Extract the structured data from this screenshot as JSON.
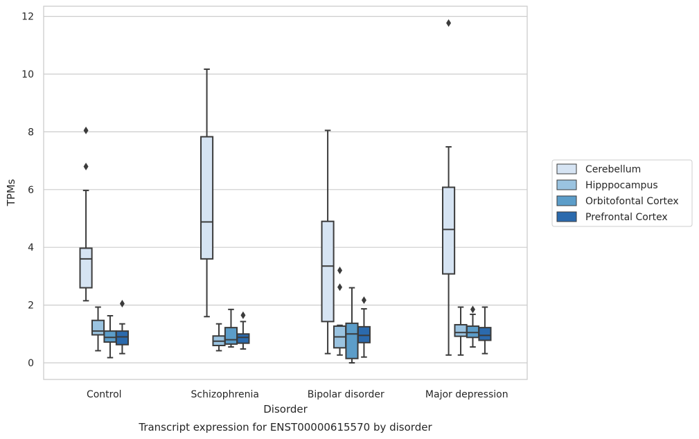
{
  "caption": "Transcript expression for ENST00000615570 by disorder",
  "chart_data": {
    "type": "box",
    "xlabel": "Disorder",
    "ylabel": "TPMs",
    "ylim": [
      -0.55,
      12.35
    ],
    "yticks": [
      0,
      2,
      4,
      6,
      8,
      10,
      12
    ],
    "grid": "horizontal",
    "legend_position": "right",
    "categories": [
      "Control",
      "Schizophrenia",
      "Bipolar disorder",
      "Major depression"
    ],
    "series": [
      {
        "name": "Cerebellum",
        "color": "#d6e4f3",
        "boxes": [
          {
            "whisker_low": 2.15,
            "q1": 2.6,
            "median": 3.6,
            "q3": 3.97,
            "whisker_high": 5.97,
            "outliers": [
              6.8,
              8.05
            ]
          },
          {
            "whisker_low": 1.6,
            "q1": 3.6,
            "median": 4.88,
            "q3": 7.83,
            "whisker_high": 10.17,
            "outliers": []
          },
          {
            "whisker_low": 0.32,
            "q1": 1.43,
            "median": 3.35,
            "q3": 4.9,
            "whisker_high": 8.05,
            "outliers": []
          },
          {
            "whisker_low": 0.27,
            "q1": 3.08,
            "median": 4.62,
            "q3": 6.08,
            "whisker_high": 7.48,
            "outliers": [
              11.77
            ]
          }
        ]
      },
      {
        "name": "Hipppocampus",
        "color": "#9ac3e0",
        "boxes": [
          {
            "whisker_low": 0.42,
            "q1": 0.97,
            "median": 1.1,
            "q3": 1.47,
            "whisker_high": 1.93,
            "outliers": []
          },
          {
            "whisker_low": 0.42,
            "q1": 0.6,
            "median": 0.75,
            "q3": 0.93,
            "whisker_high": 1.35,
            "outliers": []
          },
          {
            "whisker_low": 0.27,
            "q1": 0.52,
            "median": 0.9,
            "q3": 1.27,
            "whisker_high": 1.3,
            "outliers": [
              2.62,
              3.2
            ]
          },
          {
            "whisker_low": 0.27,
            "q1": 0.92,
            "median": 1.05,
            "q3": 1.32,
            "whisker_high": 1.93,
            "outliers": []
          }
        ]
      },
      {
        "name": "Orbitofontal Cortex",
        "color": "#5c9dc9",
        "boxes": [
          {
            "whisker_low": 0.18,
            "q1": 0.72,
            "median": 0.88,
            "q3": 1.1,
            "whisker_high": 1.63,
            "outliers": []
          },
          {
            "whisker_low": 0.55,
            "q1": 0.65,
            "median": 0.8,
            "q3": 1.22,
            "whisker_high": 1.85,
            "outliers": []
          },
          {
            "whisker_low": 0.0,
            "q1": 0.15,
            "median": 1.0,
            "q3": 1.37,
            "whisker_high": 2.6,
            "outliers": []
          },
          {
            "whisker_low": 0.55,
            "q1": 0.88,
            "median": 1.05,
            "q3": 1.27,
            "whisker_high": 1.68,
            "outliers": [
              1.85
            ]
          }
        ]
      },
      {
        "name": "Prefrontal Cortex",
        "color": "#2b6aad",
        "boxes": [
          {
            "whisker_low": 0.32,
            "q1": 0.63,
            "median": 0.9,
            "q3": 1.1,
            "whisker_high": 1.35,
            "outliers": [
              2.05
            ]
          },
          {
            "whisker_low": 0.48,
            "q1": 0.68,
            "median": 0.88,
            "q3": 1.0,
            "whisker_high": 1.43,
            "outliers": [
              1.65
            ]
          },
          {
            "whisker_low": 0.2,
            "q1": 0.7,
            "median": 0.95,
            "q3": 1.25,
            "whisker_high": 1.87,
            "outliers": [
              2.17
            ]
          },
          {
            "whisker_low": 0.32,
            "q1": 0.78,
            "median": 0.95,
            "q3": 1.22,
            "whisker_high": 1.93,
            "outliers": []
          }
        ]
      }
    ]
  }
}
